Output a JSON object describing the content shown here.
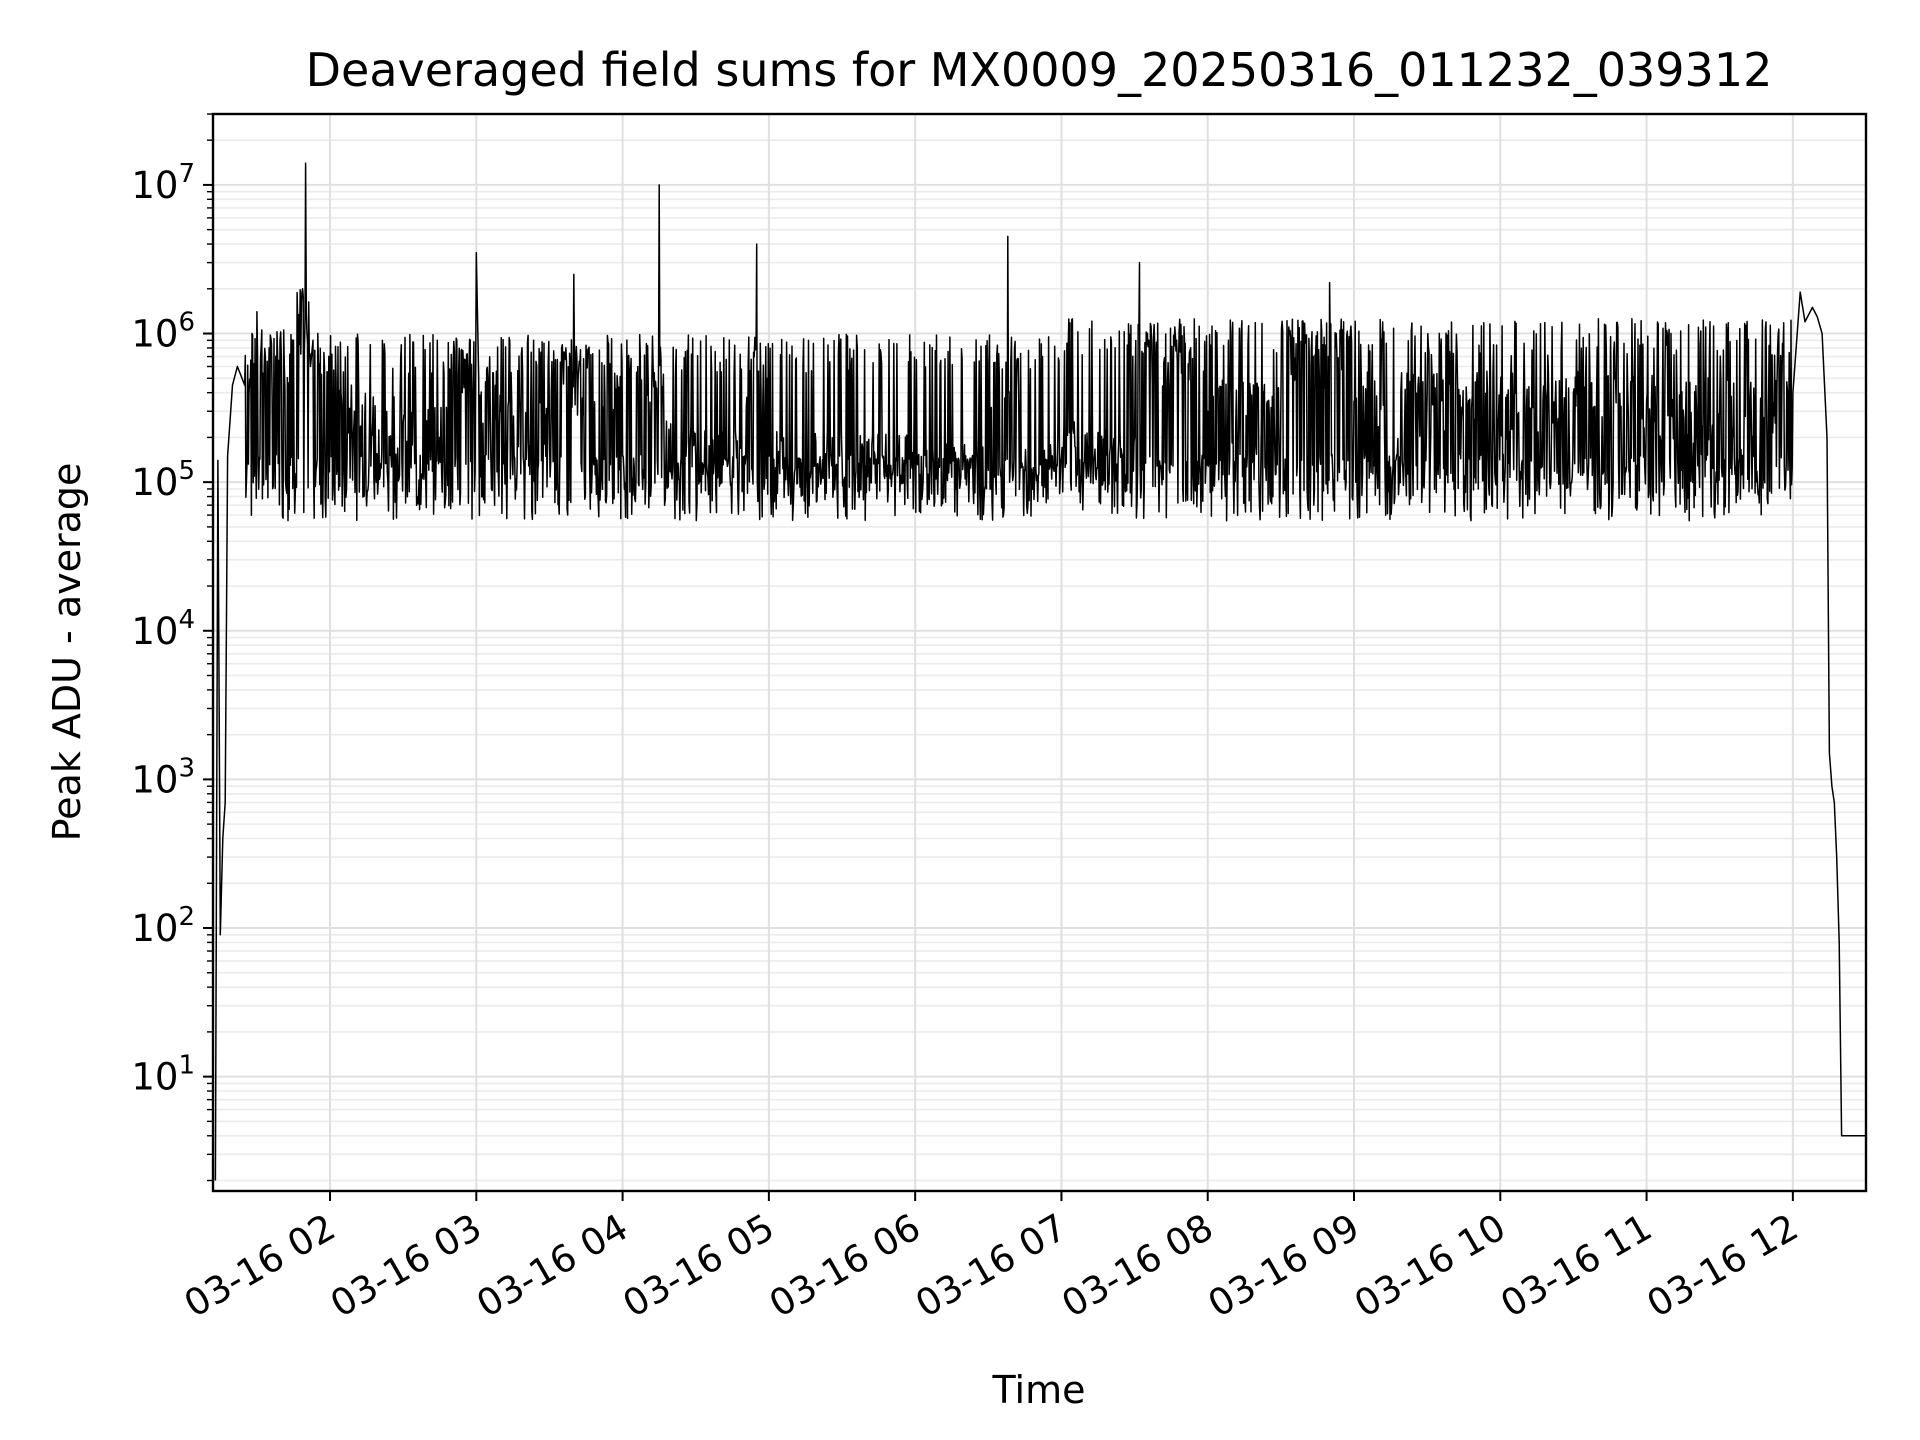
{
  "chart_data": {
    "type": "line",
    "title": "Deaveraged field sums for MX0009_20250316_011232_039312",
    "xlabel": "Time",
    "ylabel": "Peak ADU - average",
    "yscale": "log",
    "ylim": [
      1.7,
      30000000
    ],
    "xlim": [
      "03-16 01:12",
      "03-16 12:30"
    ],
    "x_ticks": [
      "03-16 02",
      "03-16 03",
      "03-16 04",
      "03-16 05",
      "03-16 06",
      "03-16 07",
      "03-16 08",
      "03-16 09",
      "03-16 10",
      "03-16 11",
      "03-16 12"
    ],
    "y_ticks": [
      {
        "value": 10,
        "base": "10",
        "exp": "1"
      },
      {
        "value": 100,
        "base": "10",
        "exp": "2"
      },
      {
        "value": 1000,
        "base": "10",
        "exp": "3"
      },
      {
        "value": 10000,
        "base": "10",
        "exp": "4"
      },
      {
        "value": 100000,
        "base": "10",
        "exp": "5"
      },
      {
        "value": 1000000,
        "base": "10",
        "exp": "6"
      },
      {
        "value": 10000000,
        "base": "10",
        "exp": "7"
      }
    ],
    "grid": true,
    "line_color": "#000000",
    "series": [
      {
        "x": [
          "03-16 01:13",
          "03-16 01:14",
          "03-16 01:15",
          "03-16 01:16",
          "03-16 01:17",
          "03-16 01:18",
          "03-16 01:20",
          "03-16 01:22",
          "03-16 01:25",
          "03-16 01:28",
          "03-16 01:30",
          "03-16 01:33",
          "03-16 01:35",
          "03-16 01:40",
          "03-16 01:45",
          "03-16 01:50",
          "03-16 01:52",
          "03-16 01:53",
          "03-16 01:55",
          "03-16 02:00",
          "03-16 02:10",
          "03-16 02:30",
          "03-16 02:45",
          "03-16 03:00",
          "03-16 03:01",
          "03-16 03:10",
          "03-16 03:30",
          "03-16 03:40",
          "03-16 04:00",
          "03-16 04:15",
          "03-16 04:17",
          "03-16 04:30",
          "03-16 04:50",
          "03-16 04:55",
          "03-16 05:00",
          "03-16 05:30",
          "03-16 06:00",
          "03-16 06:30",
          "03-16 06:38",
          "03-16 06:45",
          "03-16 07:00",
          "03-16 07:30",
          "03-16 07:32",
          "03-16 08:00",
          "03-16 08:30",
          "03-16 08:50",
          "03-16 09:00",
          "03-16 09:30",
          "03-16 10:00",
          "03-16 10:30",
          "03-16 11:00",
          "03-16 11:30",
          "03-16 11:50",
          "03-16 12:00",
          "03-16 12:03",
          "03-16 12:05",
          "03-16 12:08",
          "03-16 12:10",
          "03-16 12:12",
          "03-16 12:14",
          "03-16 12:15",
          "03-16 12:16",
          "03-16 12:17",
          "03-16 12:18",
          "03-16 12:19",
          "03-16 12:20",
          "03-16 12:22",
          "03-16 12:25",
          "03-16 12:30"
        ],
        "y": [
          2,
          140000,
          90,
          400,
          700,
          150000,
          450000,
          600000,
          450000,
          1000000,
          1400000,
          600000,
          800000,
          700000,
          900000,
          14000000,
          600000,
          900000,
          1000000,
          500000,
          300000,
          250000,
          200000,
          3500000,
          500000,
          300000,
          200000,
          2500000,
          150000,
          10000000,
          200000,
          150000,
          150000,
          4000000,
          150000,
          150000,
          130000,
          120000,
          4500000,
          120000,
          150000,
          200000,
          3000000,
          300000,
          350000,
          2200000,
          350000,
          400000,
          350000,
          400000,
          350000,
          350000,
          300000,
          400000,
          1900000,
          1200000,
          1500000,
          1300000,
          1000000,
          200000,
          1500,
          900,
          700,
          300,
          80,
          4,
          4,
          4,
          4
        ]
      }
    ]
  }
}
